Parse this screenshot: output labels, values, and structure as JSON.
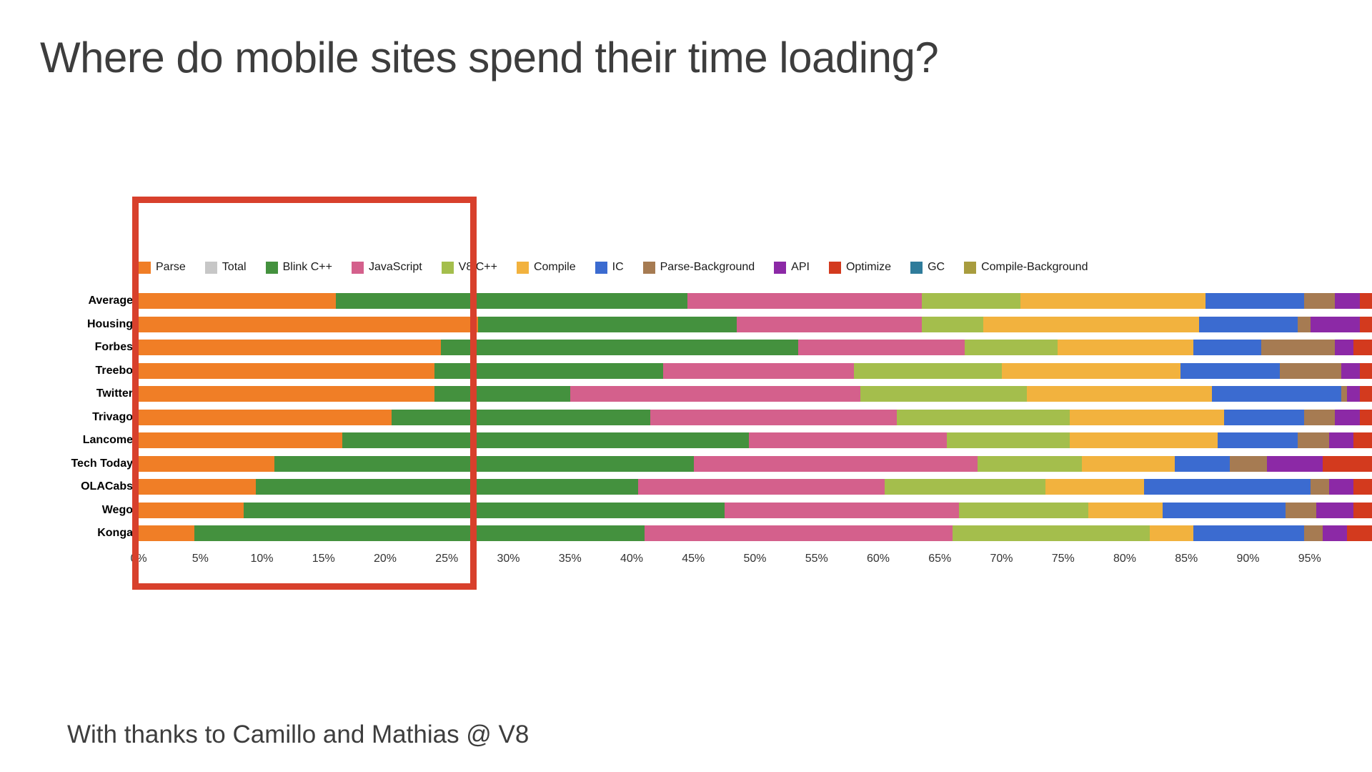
{
  "slide": {
    "title": "Where do mobile sites spend their time loading?",
    "footer": "With thanks to Camillo and Mathias @ V8"
  },
  "chart_data": {
    "type": "bar",
    "orientation": "horizontal",
    "stacked": true,
    "unit": "%",
    "title": "Where do mobile sites spend their time loading?",
    "xlabel": "",
    "ylabel": "",
    "xlim": [
      0,
      100
    ],
    "grid": false,
    "legend_position": "top",
    "categories": [
      "Average",
      "Housing",
      "Forbes",
      "Treebo",
      "Twitter",
      "Trivago",
      "Lancome",
      "Tech Today",
      "OLACabs",
      "Wego",
      "Konga"
    ],
    "series": [
      {
        "name": "Parse",
        "color": "#F07E26",
        "values": [
          16,
          27.5,
          24.5,
          24,
          24,
          20.5,
          16.5,
          11,
          9.5,
          8.5,
          4.5
        ]
      },
      {
        "name": "Total",
        "color": "#C7C7C7",
        "values": [
          0,
          0,
          0,
          0,
          0,
          0,
          0,
          0,
          0,
          0,
          0
        ]
      },
      {
        "name": "Blink C++",
        "color": "#44913E",
        "values": [
          28.5,
          21,
          29,
          18.5,
          11,
          21,
          33,
          34,
          31,
          39,
          36.5
        ]
      },
      {
        "name": "JavaScript",
        "color": "#D4608C",
        "values": [
          19,
          15,
          13.5,
          15.5,
          23.5,
          20,
          16,
          23,
          20,
          19,
          25
        ]
      },
      {
        "name": "V8 C++",
        "color": "#A4BE4C",
        "values": [
          8,
          5,
          7.5,
          12,
          13.5,
          14,
          10,
          8.5,
          13,
          10.5,
          16
        ]
      },
      {
        "name": "Compile",
        "color": "#F2B23E",
        "values": [
          15,
          17.5,
          11,
          14.5,
          15,
          12.5,
          12,
          7.5,
          8,
          6,
          3.5
        ]
      },
      {
        "name": "IC",
        "color": "#3B6BD0",
        "values": [
          8,
          8,
          5.5,
          8,
          10.5,
          6.5,
          6.5,
          4.5,
          13.5,
          10,
          9
        ]
      },
      {
        "name": "Parse-Background",
        "color": "#A67B52",
        "values": [
          2.5,
          1,
          6,
          5,
          0.5,
          2.5,
          2.5,
          3,
          1.5,
          2.5,
          1.5
        ]
      },
      {
        "name": "API",
        "color": "#8C29A6",
        "values": [
          2,
          4,
          1.5,
          1.5,
          1,
          2,
          2,
          4.5,
          2,
          3,
          2
        ]
      },
      {
        "name": "Optimize",
        "color": "#D33A1E",
        "values": [
          1,
          1,
          1.5,
          1,
          1,
          1,
          1.5,
          4,
          1.5,
          1.5,
          2
        ]
      },
      {
        "name": "GC",
        "color": "#2F7C9B",
        "values": [
          0,
          0,
          0,
          0,
          0,
          0,
          0,
          0,
          0,
          0,
          0
        ]
      },
      {
        "name": "Compile-Background",
        "color": "#A89C3E",
        "values": [
          0,
          0,
          0,
          0,
          0,
          0,
          0,
          0,
          0,
          0,
          0
        ]
      }
    ],
    "x_ticks": [
      "0%",
      "5%",
      "10%",
      "15%",
      "20%",
      "25%",
      "30%",
      "35%",
      "40%",
      "45%",
      "50%",
      "55%",
      "60%",
      "65%",
      "70%",
      "75%",
      "80%",
      "85%",
      "90%",
      "95%"
    ]
  },
  "annotations": {
    "highlight_box": {
      "color": "#D8402C",
      "from_pct": -0.5,
      "to_pct": 27.4
    }
  }
}
